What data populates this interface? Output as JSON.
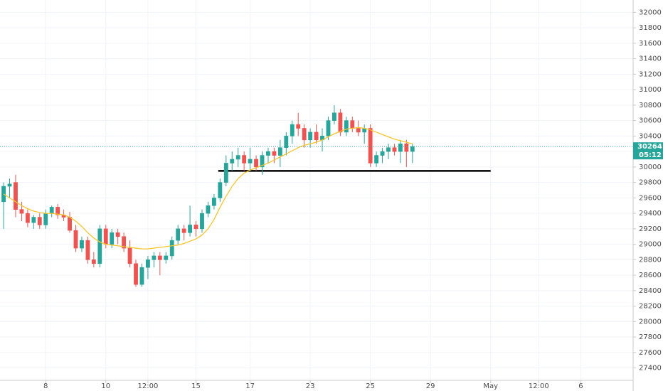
{
  "chart_data": {
    "type": "candlestick",
    "up_color": "#26a69a",
    "down_color": "#ef5350",
    "open": [
      29550,
      29750,
      29800,
      29450,
      29400,
      29280,
      29350,
      29250,
      29400,
      29480,
      29380,
      29350,
      29180,
      28950,
      29050,
      28800,
      28750,
      29200,
      29000,
      29150,
      29100,
      28950,
      28750,
      28480,
      28700,
      28800,
      28850,
      28800,
      28850,
      29050,
      29200,
      29150,
      29250,
      29200,
      29400,
      29500,
      29600,
      29800,
      30050,
      30100,
      30150,
      30050,
      30100,
      30000,
      30150,
      30200,
      30150,
      30250,
      30400,
      30550,
      30500,
      30350,
      30450,
      30350,
      30400,
      30600,
      30700,
      30450,
      30600,
      30500,
      30450,
      30500,
      30050,
      30150,
      30200,
      30250,
      30200,
      30300,
      30200
    ],
    "high": [
      29800,
      29850,
      29900,
      29550,
      29450,
      29380,
      29400,
      29450,
      29500,
      29520,
      29450,
      29420,
      29250,
      29100,
      29100,
      28900,
      29250,
      29250,
      29200,
      29200,
      29150,
      29050,
      28800,
      28750,
      28850,
      28900,
      28900,
      28900,
      29100,
      29250,
      29250,
      29500,
      29300,
      29450,
      29550,
      29650,
      29850,
      30150,
      30200,
      30250,
      30200,
      30250,
      30150,
      30200,
      30250,
      30250,
      30350,
      30450,
      30600,
      30700,
      30550,
      30500,
      30550,
      30500,
      30650,
      30800,
      30750,
      30650,
      30650,
      30600,
      30550,
      30550,
      30200,
      30250,
      30300,
      30300,
      30350,
      30350,
      30300
    ],
    "low": [
      29200,
      29600,
      29350,
      29300,
      29220,
      29200,
      29200,
      29200,
      29350,
      29330,
      29300,
      29150,
      28900,
      28900,
      28750,
      28700,
      28700,
      28950,
      28950,
      29000,
      28900,
      28700,
      28450,
      28450,
      28550,
      28700,
      28600,
      28750,
      28800,
      29000,
      29050,
      29100,
      29100,
      29150,
      29350,
      29450,
      29550,
      29750,
      29950,
      30000,
      29950,
      29950,
      29950,
      29900,
      30050,
      30050,
      30000,
      30150,
      30300,
      30400,
      30250,
      30250,
      30300,
      30200,
      30350,
      30550,
      30400,
      30400,
      30450,
      30400,
      30300,
      30000,
      30000,
      30050,
      30100,
      30150,
      30050,
      30000,
      30050
    ],
    "close": [
      29750,
      29780,
      29450,
      29400,
      29280,
      29350,
      29250,
      29400,
      29480,
      29380,
      29350,
      29180,
      28950,
      29050,
      28800,
      28750,
      29200,
      29000,
      29150,
      29100,
      28950,
      28750,
      28480,
      28700,
      28800,
      28850,
      28800,
      28850,
      29050,
      29200,
      29150,
      29250,
      29200,
      29400,
      29500,
      29600,
      29800,
      30050,
      30100,
      30150,
      30050,
      30100,
      30000,
      30150,
      30200,
      30150,
      30250,
      30400,
      30550,
      30500,
      30350,
      30450,
      30350,
      30400,
      30600,
      30700,
      30450,
      30600,
      30500,
      30450,
      30500,
      30050,
      30150,
      30200,
      30250,
      30200,
      30300,
      30200,
      30264
    ],
    "moving_average": {
      "color": "#f7c52b",
      "values": [
        29650,
        29600,
        29550,
        29500,
        29460,
        29430,
        29410,
        29400,
        29400,
        29390,
        29380,
        29350,
        29300,
        29230,
        29150,
        29080,
        29030,
        29000,
        28990,
        28980,
        28970,
        28960,
        28950,
        28940,
        28940,
        28950,
        28960,
        28970,
        28980,
        28990,
        29010,
        29040,
        29070,
        29120,
        29200,
        29320,
        29480,
        29620,
        29750,
        29850,
        29920,
        29960,
        29990,
        30020,
        30050,
        30090,
        30130,
        30170,
        30210,
        30250,
        30280,
        30300,
        30320,
        30350,
        30390,
        30430,
        30460,
        30490,
        30500,
        30510,
        30500,
        30480,
        30450,
        30420,
        30390,
        30360,
        30340,
        30320,
        30300
      ]
    },
    "horizontal_line": {
      "value": 29950,
      "from": 35.7,
      "to": 81,
      "color": "#000000"
    },
    "countdown": "05:12",
    "xlim": [
      -0.6,
      104.7
    ],
    "xticks": [
      {
        "value": 7,
        "label": "8"
      },
      {
        "value": 17,
        "label": "10"
      },
      {
        "value": 24,
        "label": "12:00"
      },
      {
        "value": 32,
        "label": "15"
      },
      {
        "value": 41,
        "label": "17"
      },
      {
        "value": 51,
        "label": "23"
      },
      {
        "value": 61,
        "label": "25"
      },
      {
        "value": 71,
        "label": "29"
      },
      {
        "value": 81,
        "label": "May"
      },
      {
        "value": 89,
        "label": "12:00"
      },
      {
        "value": 96,
        "label": "6"
      }
    ],
    "ylim": [
      27240,
      32160
    ],
    "yticks": [
      27400,
      27600,
      27800,
      28000,
      28200,
      28400,
      28600,
      28800,
      29000,
      29200,
      29400,
      29600,
      29800,
      30000,
      30200,
      30400,
      30600,
      30800,
      31000,
      31200,
      31400,
      31600,
      31800,
      32000
    ],
    "grid": true
  }
}
